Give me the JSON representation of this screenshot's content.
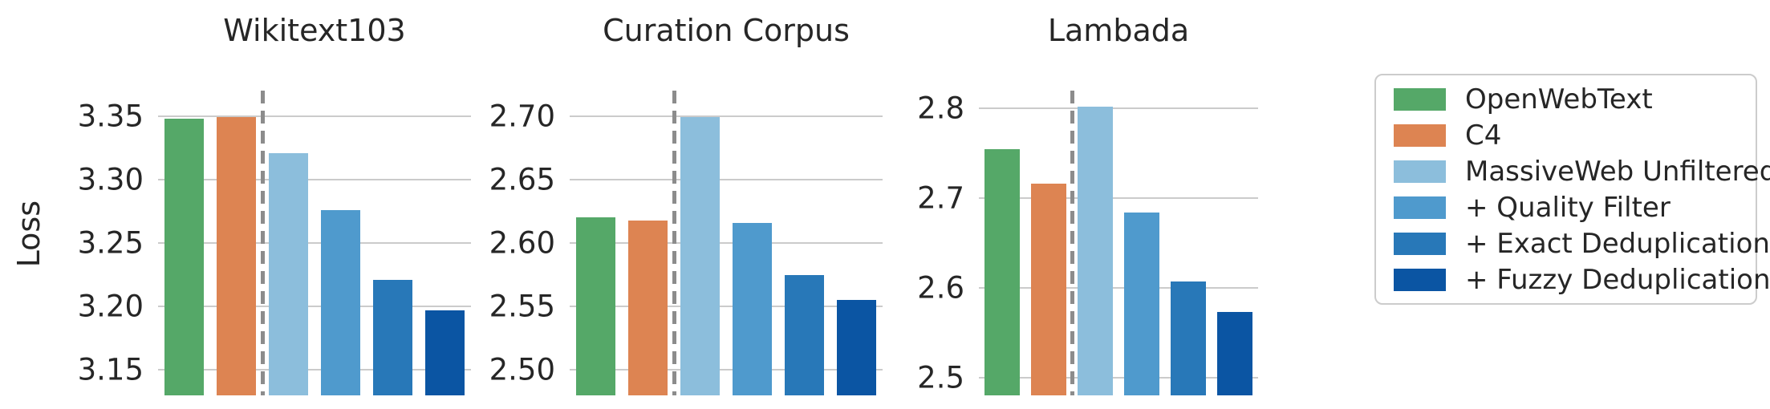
{
  "figure": {
    "ylabel": "Loss",
    "colors": {
      "background": "#ffffff",
      "text": "#262626",
      "grid": "#cbcbcb",
      "divider": "#8c8c8c",
      "legend_border": "#cccccc"
    }
  },
  "legend": {
    "items": [
      {
        "label": "OpenWebText",
        "color": "#55a868"
      },
      {
        "label": "C4",
        "color": "#dd8452"
      },
      {
        "label": "MassiveWeb Unfiltered",
        "color": "#8cbedc"
      },
      {
        "label": "+ Quality Filter",
        "color": "#4f9acd"
      },
      {
        "label": "+ Exact Deduplication",
        "color": "#2878b8"
      },
      {
        "label": "+ Fuzzy Deduplication",
        "color": "#0b55a3"
      }
    ]
  },
  "chart_data": {
    "type": "bar",
    "ylabel": "Loss",
    "grid": true,
    "legend_position": "right",
    "series": [
      {
        "name": "OpenWebText",
        "color": "#55a868"
      },
      {
        "name": "C4",
        "color": "#dd8452"
      },
      {
        "name": "MassiveWeb Unfiltered",
        "color": "#8cbedc"
      },
      {
        "name": "+ Quality Filter",
        "color": "#4f9acd"
      },
      {
        "name": "+ Exact Deduplication",
        "color": "#2878b8"
      },
      {
        "name": "+ Fuzzy Deduplication",
        "color": "#0b55a3"
      }
    ],
    "divider_after_series_index": 1,
    "panels": [
      {
        "title": "Wikitext103",
        "values": [
          3.348,
          3.349,
          3.321,
          3.276,
          3.221,
          3.197
        ],
        "ylim": [
          3.13,
          3.37
        ],
        "yticks": [
          {
            "label": "3.35",
            "value": 3.35
          },
          {
            "label": "3.30",
            "value": 3.3
          },
          {
            "label": "3.25",
            "value": 3.25
          },
          {
            "label": "3.20",
            "value": 3.2
          },
          {
            "label": "3.15",
            "value": 3.15
          }
        ]
      },
      {
        "title": "Curation Corpus",
        "values": [
          2.62,
          2.618,
          2.699,
          2.616,
          2.575,
          2.555
        ],
        "ylim": [
          2.48,
          2.72
        ],
        "yticks": [
          {
            "label": "2.70",
            "value": 2.7
          },
          {
            "label": "2.65",
            "value": 2.65
          },
          {
            "label": "2.60",
            "value": 2.6
          },
          {
            "label": "2.55",
            "value": 2.55
          },
          {
            "label": "2.50",
            "value": 2.5
          }
        ]
      },
      {
        "title": "Lambada",
        "values": [
          2.755,
          2.716,
          2.802,
          2.684,
          2.607,
          2.573
        ],
        "ylim": [
          2.48,
          2.82
        ],
        "yticks": [
          {
            "label": "2.8",
            "value": 2.8
          },
          {
            "label": "2.7",
            "value": 2.7
          },
          {
            "label": "2.6",
            "value": 2.6
          },
          {
            "label": "2.5",
            "value": 2.5
          }
        ]
      }
    ]
  }
}
